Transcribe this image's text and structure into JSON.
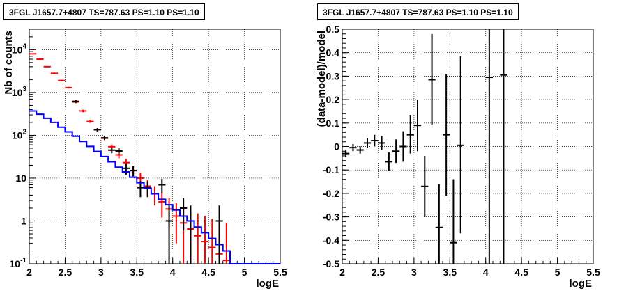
{
  "chart_data": [
    {
      "type": "scatter",
      "title": "3FGL J1657.7+4807 TS=787.63 PS=1.10 PS=1.10",
      "xlabel": "logE",
      "ylabel": "Nb of counts",
      "xlim": [
        2,
        5.5
      ],
      "ylim": [
        0.1,
        30000
      ],
      "yscale": "log",
      "grid": true,
      "x_ticks": [
        "2",
        "2.5",
        "3",
        "3.5",
        "4",
        "4.5",
        "5",
        "5.5"
      ],
      "y_ticks": [
        {
          "value": 0.1,
          "base": "10",
          "exp": "-1"
        },
        {
          "value": 1,
          "base": "1",
          "exp": ""
        },
        {
          "value": 10,
          "base": "10",
          "exp": ""
        },
        {
          "value": 100,
          "base": "10",
          "exp": "2"
        },
        {
          "value": 1000,
          "base": "10",
          "exp": "3"
        },
        {
          "value": 10000,
          "base": "10",
          "exp": "4"
        }
      ],
      "series": [
        {
          "color": "#ff0000",
          "style": "errorbar",
          "points": [
            {
              "x": 2.05,
              "y": 8000,
              "lo": 7800,
              "hi": 8200
            },
            {
              "x": 2.15,
              "y": 6000,
              "lo": 5850,
              "hi": 6150
            },
            {
              "x": 2.25,
              "y": 4000,
              "lo": 3880,
              "hi": 4120
            },
            {
              "x": 2.35,
              "y": 2800,
              "lo": 2700,
              "hi": 2900
            },
            {
              "x": 2.45,
              "y": 1900,
              "lo": 1820,
              "hi": 1980
            },
            {
              "x": 2.55,
              "y": 1300,
              "lo": 1240,
              "hi": 1360
            },
            {
              "x": 2.65,
              "y": 600,
              "lo": 560,
              "hi": 640
            },
            {
              "x": 2.75,
              "y": 370,
              "lo": 345,
              "hi": 395
            },
            {
              "x": 2.85,
              "y": 210,
              "lo": 195,
              "hi": 225
            },
            {
              "x": 2.95,
              "y": 135,
              "lo": 124,
              "hi": 146
            },
            {
              "x": 3.05,
              "y": 85,
              "lo": 77,
              "hi": 93
            },
            {
              "x": 3.15,
              "y": 54,
              "lo": 47,
              "hi": 61
            },
            {
              "x": 3.25,
              "y": 35,
              "lo": 29,
              "hi": 41
            },
            {
              "x": 3.35,
              "y": 23,
              "lo": 18,
              "hi": 28
            },
            {
              "x": 3.45,
              "y": 15,
              "lo": 11,
              "hi": 19
            },
            {
              "x": 3.55,
              "y": 10,
              "lo": 7,
              "hi": 13.5
            },
            {
              "x": 3.65,
              "y": 6.5,
              "lo": 4,
              "hi": 9
            },
            {
              "x": 3.75,
              "y": 4.3,
              "lo": 2.3,
              "hi": 6.5
            },
            {
              "x": 3.85,
              "y": 2.8,
              "lo": 1.2,
              "hi": 4.6
            },
            {
              "x": 3.95,
              "y": 1.9,
              "lo": 0.6,
              "hi": 3.4
            },
            {
              "x": 4.05,
              "y": 1.3,
              "lo": 0.3,
              "hi": 2.6
            },
            {
              "x": 4.15,
              "y": 0.9,
              "lo": 0.1,
              "hi": 2.1
            },
            {
              "x": 4.25,
              "y": 0.65,
              "lo": 0.1,
              "hi": 1.8
            },
            {
              "x": 4.35,
              "y": 0.45,
              "lo": 0.1,
              "hi": 1.5
            },
            {
              "x": 4.45,
              "y": 0.33,
              "lo": 0.1,
              "hi": 1.3
            },
            {
              "x": 4.55,
              "y": 0.24,
              "lo": 0.1,
              "hi": 1.1
            },
            {
              "x": 4.65,
              "y": 0.17,
              "lo": 0.1,
              "hi": 1.0
            },
            {
              "x": 4.75,
              "y": 0.12,
              "lo": 0.1,
              "hi": 0.9
            }
          ]
        },
        {
          "color": "#000000",
          "style": "errorbar",
          "points": [
            {
              "x": 2.65,
              "y": 620,
              "lo": 580,
              "hi": 660
            },
            {
              "x": 2.95,
              "y": 135,
              "lo": 123,
              "hi": 147
            },
            {
              "x": 3.05,
              "y": 87,
              "lo": 78,
              "hi": 96
            },
            {
              "x": 3.15,
              "y": 45,
              "lo": 38,
              "hi": 52
            },
            {
              "x": 3.25,
              "y": 43,
              "lo": 36,
              "hi": 50
            },
            {
              "x": 3.35,
              "y": 17,
              "lo": 12,
              "hi": 22
            },
            {
              "x": 3.45,
              "y": 15,
              "lo": 11,
              "hi": 19
            },
            {
              "x": 3.55,
              "y": 6,
              "lo": 3.6,
              "hi": 8.4
            },
            {
              "x": 3.65,
              "y": 6,
              "lo": 3.6,
              "hi": 8.4
            },
            {
              "x": 3.85,
              "y": 7,
              "lo": 4.4,
              "hi": 9.6
            },
            {
              "x": 3.95,
              "y": 1,
              "lo": 0.1,
              "hi": 2.3
            },
            {
              "x": 4.15,
              "y": 2,
              "lo": 0.6,
              "hi": 3.4
            },
            {
              "x": 4.25,
              "y": 1,
              "lo": 0.1,
              "hi": 2.3
            },
            {
              "x": 4.65,
              "y": 1,
              "lo": 0.1,
              "hi": 2.3
            }
          ]
        },
        {
          "color": "#0000ff",
          "style": "step",
          "edges": [
            2.0,
            2.1,
            2.2,
            2.3,
            2.4,
            2.5,
            2.6,
            2.7,
            2.8,
            2.9,
            3.0,
            3.1,
            3.2,
            3.3,
            3.4,
            3.5,
            3.6,
            3.7,
            3.8,
            3.9,
            4.0,
            4.1,
            4.2,
            4.3,
            4.4,
            4.5,
            4.6,
            4.7,
            4.8,
            5.5
          ],
          "values": [
            370,
            310,
            250,
            200,
            155,
            120,
            95,
            72,
            55,
            42,
            32,
            24,
            18,
            14,
            10.5,
            7.8,
            5.8,
            4.3,
            3.2,
            2.4,
            1.8,
            1.3,
            1.0,
            0.72,
            0.53,
            0.39,
            0.28,
            0.2,
            0.1
          ]
        }
      ]
    },
    {
      "type": "scatter",
      "title": "3FGL J1657.7+4807 TS=787.63 PS=1.10 PS=1.10",
      "xlabel": "logE",
      "ylabel": "(data-model)/model",
      "xlim": [
        2,
        5.5
      ],
      "ylim": [
        -0.5,
        0.5
      ],
      "yscale": "linear",
      "grid": true,
      "x_ticks": [
        "2",
        "2.5",
        "3",
        "3.5",
        "4",
        "4.5",
        "5",
        "5.5"
      ],
      "y_ticks": [
        "-0.5",
        "-0.4",
        "-0.3",
        "-0.2",
        "-0.1",
        "0",
        "0.1",
        "0.2",
        "0.3",
        "0.4",
        "0.5"
      ],
      "series": [
        {
          "color": "#000000",
          "style": "errorbar",
          "points": [
            {
              "x": 2.05,
              "y": -0.03,
              "lo": -0.045,
              "hi": -0.015
            },
            {
              "x": 2.15,
              "y": -0.005,
              "lo": -0.02,
              "hi": 0.01
            },
            {
              "x": 2.25,
              "y": -0.015,
              "lo": -0.03,
              "hi": 0.0
            },
            {
              "x": 2.35,
              "y": 0.015,
              "lo": -0.005,
              "hi": 0.035
            },
            {
              "x": 2.45,
              "y": 0.025,
              "lo": 0.0,
              "hi": 0.05
            },
            {
              "x": 2.55,
              "y": 0.015,
              "lo": -0.015,
              "hi": 0.045
            },
            {
              "x": 2.65,
              "y": -0.065,
              "lo": -0.105,
              "hi": -0.025
            },
            {
              "x": 2.75,
              "y": -0.02,
              "lo": -0.07,
              "hi": 0.03
            },
            {
              "x": 2.85,
              "y": 0.0,
              "lo": -0.065,
              "hi": 0.065
            },
            {
              "x": 2.95,
              "y": 0.05,
              "lo": -0.03,
              "hi": 0.135
            },
            {
              "x": 3.05,
              "y": 0.09,
              "lo": -0.02,
              "hi": 0.2
            },
            {
              "x": 3.15,
              "y": -0.17,
              "lo": -0.3,
              "hi": -0.04
            },
            {
              "x": 3.25,
              "y": 0.285,
              "lo": 0.09,
              "hi": 0.48
            },
            {
              "x": 3.35,
              "y": -0.345,
              "lo": -0.5,
              "hi": -0.16
            },
            {
              "x": 3.45,
              "y": 0.05,
              "lo": -0.21,
              "hi": 0.31
            },
            {
              "x": 3.55,
              "y": -0.41,
              "lo": -0.5,
              "hi": -0.14
            },
            {
              "x": 3.65,
              "y": 0.005,
              "lo": -0.37,
              "hi": 0.385
            },
            {
              "x": 4.05,
              "y": 0.295,
              "lo": -0.5,
              "hi": 0.5
            },
            {
              "x": 4.25,
              "y": 0.305,
              "lo": -0.5,
              "hi": 0.5
            }
          ]
        }
      ]
    }
  ]
}
